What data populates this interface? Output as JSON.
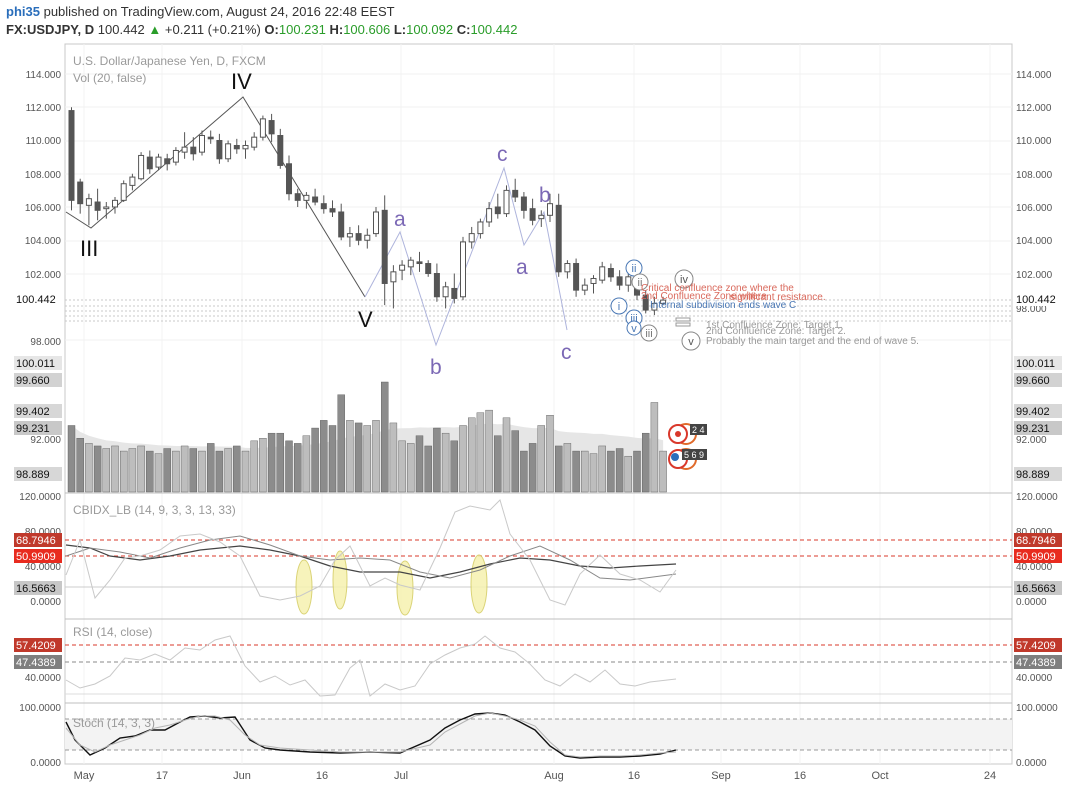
{
  "header": {
    "user": "phi35",
    "published_text": "published on TradingView.com, August 24, 2016 22:48 EEST",
    "symbol": "FX:USDJPY, D",
    "last": "100.442",
    "change": "+0.211 (+0.21%)",
    "o_label": "O:",
    "o_value": "100.231",
    "h_label": "H:",
    "h_value": "100.606",
    "l_label": "L:",
    "l_value": "100.092",
    "c_label": "C:",
    "c_value": "100.442"
  },
  "legend": {
    "main": "U.S. Dollar/Japanese Yen, D, FXCM",
    "vol": "Vol (20, false)",
    "cbidx": "CBIDX_LB (14, 9, 3, 3, 13, 33)",
    "rsi": "RSI (14, close)",
    "stoch": "Stoch (14, 3, 3)"
  },
  "chart_data": {
    "type": "candlestick",
    "title": "U.S. Dollar/Japanese Yen, D, FXCM",
    "y_ticks": [
      "114.000",
      "112.000",
      "110.000",
      "108.000",
      "106.000",
      "104.000",
      "102.000",
      "98.000"
    ],
    "x_ticks": [
      "May",
      "17",
      "Jun",
      "16",
      "Jul",
      "Aug",
      "16",
      "Sep",
      "16",
      "Oct",
      "24"
    ],
    "ylim": [
      97,
      115
    ],
    "last_price_label": "100.442",
    "candles": [
      [
        111.8,
        112.0,
        105.8,
        106.4
      ],
      [
        107.5,
        107.7,
        105.6,
        106.2
      ],
      [
        106.1,
        106.8,
        104.9,
        106.5
      ],
      [
        106.3,
        107.1,
        105.2,
        105.8
      ],
      [
        105.9,
        106.3,
        105.3,
        106.0
      ],
      [
        106.0,
        106.6,
        105.6,
        106.4
      ],
      [
        106.4,
        107.6,
        106.3,
        107.4
      ],
      [
        107.3,
        108.0,
        107.0,
        107.8
      ],
      [
        107.7,
        109.3,
        107.6,
        109.1
      ],
      [
        109.0,
        109.4,
        108.0,
        108.3
      ],
      [
        108.4,
        109.2,
        108.2,
        109.0
      ],
      [
        108.9,
        109.2,
        108.2,
        108.6
      ],
      [
        108.7,
        109.6,
        108.5,
        109.4
      ],
      [
        109.3,
        110.5,
        108.9,
        109.6
      ],
      [
        109.6,
        110.2,
        108.8,
        109.2
      ],
      [
        109.3,
        110.6,
        109.1,
        110.3
      ],
      [
        110.2,
        110.6,
        109.8,
        110.1
      ],
      [
        110.0,
        110.4,
        108.6,
        108.9
      ],
      [
        108.9,
        110.0,
        108.7,
        109.8
      ],
      [
        109.7,
        110.1,
        109.2,
        109.5
      ],
      [
        109.5,
        110.0,
        108.9,
        109.7
      ],
      [
        109.6,
        110.5,
        109.4,
        110.2
      ],
      [
        110.2,
        111.5,
        110.0,
        111.3
      ],
      [
        111.2,
        111.6,
        109.9,
        110.4
      ],
      [
        110.3,
        110.7,
        108.3,
        108.5
      ],
      [
        108.6,
        109.1,
        106.4,
        106.8
      ],
      [
        106.8,
        107.1,
        106.0,
        106.4
      ],
      [
        106.4,
        106.9,
        105.9,
        106.7
      ],
      [
        106.6,
        107.1,
        106.1,
        106.3
      ],
      [
        106.2,
        106.7,
        105.6,
        105.9
      ],
      [
        105.9,
        106.4,
        105.4,
        105.7
      ],
      [
        105.7,
        106.2,
        104.0,
        104.2
      ],
      [
        104.2,
        104.8,
        103.6,
        104.4
      ],
      [
        104.4,
        104.9,
        103.7,
        104.0
      ],
      [
        104.0,
        104.7,
        103.5,
        104.3
      ],
      [
        104.4,
        106.0,
        104.2,
        105.7
      ],
      [
        105.8,
        106.7,
        100.1,
        101.4
      ],
      [
        101.5,
        102.5,
        99.9,
        102.1
      ],
      [
        102.2,
        102.8,
        101.6,
        102.5
      ],
      [
        102.4,
        103.0,
        101.9,
        102.8
      ],
      [
        102.7,
        103.3,
        102.1,
        102.6
      ],
      [
        102.6,
        102.8,
        101.8,
        102.0
      ],
      [
        102.0,
        102.6,
        100.3,
        100.6
      ],
      [
        100.6,
        101.5,
        99.9,
        101.2
      ],
      [
        101.1,
        102.0,
        100.2,
        100.5
      ],
      [
        100.6,
        104.2,
        100.4,
        103.9
      ],
      [
        103.9,
        104.8,
        103.5,
        104.4
      ],
      [
        104.4,
        105.3,
        104.1,
        105.1
      ],
      [
        105.1,
        106.3,
        104.8,
        105.9
      ],
      [
        106.0,
        106.8,
        105.3,
        105.6
      ],
      [
        105.6,
        107.3,
        105.4,
        107.0
      ],
      [
        107.0,
        107.7,
        106.3,
        106.6
      ],
      [
        106.6,
        106.9,
        105.3,
        105.8
      ],
      [
        105.9,
        106.5,
        104.9,
        105.2
      ],
      [
        105.3,
        105.8,
        104.8,
        105.5
      ],
      [
        105.5,
        106.8,
        105.1,
        106.2
      ],
      [
        106.1,
        106.8,
        101.8,
        102.1
      ],
      [
        102.1,
        102.8,
        101.7,
        102.6
      ],
      [
        102.6,
        102.9,
        100.6,
        101.0
      ],
      [
        101.0,
        101.7,
        100.7,
        101.3
      ],
      [
        101.4,
        101.9,
        100.8,
        101.7
      ],
      [
        101.6,
        102.7,
        101.4,
        102.4
      ],
      [
        102.3,
        102.6,
        101.5,
        101.8
      ],
      [
        101.8,
        102.2,
        101.0,
        101.3
      ],
      [
        101.3,
        102.1,
        100.9,
        101.8
      ],
      [
        101.7,
        102.1,
        100.4,
        100.7
      ],
      [
        100.7,
        101.0,
        99.6,
        99.8
      ],
      [
        99.8,
        100.6,
        99.5,
        100.2
      ],
      [
        100.2,
        100.6,
        100.1,
        100.4
      ]
    ],
    "volume": {
      "y_ticks": [
        "92.000"
      ],
      "ma_label": "20",
      "values": [
        2.6,
        2.1,
        1.9,
        1.8,
        1.7,
        1.8,
        1.6,
        1.7,
        1.8,
        1.6,
        1.5,
        1.7,
        1.6,
        1.8,
        1.7,
        1.6,
        1.9,
        1.6,
        1.7,
        1.8,
        1.6,
        2.0,
        2.1,
        2.3,
        2.3,
        2.0,
        1.9,
        2.2,
        2.5,
        2.8,
        2.6,
        3.8,
        2.8,
        2.7,
        2.6,
        2.8,
        4.3,
        2.7,
        2.0,
        1.9,
        2.2,
        1.8,
        2.5,
        2.3,
        2.0,
        2.6,
        2.9,
        3.1,
        3.2,
        2.2,
        2.9,
        2.4,
        1.6,
        1.9,
        2.6,
        3.0,
        1.8,
        1.9,
        1.6,
        1.6,
        1.5,
        1.8,
        1.6,
        1.7,
        1.4,
        1.6,
        2.3,
        3.5,
        1.6
      ]
    },
    "cbidx": {
      "y_ticks": [
        "120.0000",
        "80.0000",
        "40.0000",
        "0.0000"
      ],
      "ylim": [
        0,
        120
      ]
    },
    "rsi": {
      "y_ticks": [
        "40.0000"
      ],
      "ylim": [
        25,
        80
      ]
    },
    "stoch": {
      "y_ticks": [
        "100.0000",
        "0.0000"
      ],
      "ylim": [
        0,
        100
      ]
    }
  },
  "right_labels": {
    "price_last": "100.442",
    "l1": "100.011",
    "l2": "99.660",
    "l3": "99.402",
    "l4": "99.231",
    "l5": "98.889",
    "cb1": "68.7946",
    "cb2": "50.9909",
    "cb3": "16.5663",
    "rsi1": "57.4209",
    "rsi2": "47.4389"
  },
  "left_labels": {
    "price_last": "100.442",
    "l1": "100.011",
    "l2": "99.660",
    "l3": "99.402",
    "l4": "99.231",
    "l5": "98.889",
    "cb1": "68.7946",
    "cb2": "50.9909",
    "cb3": "16.5663",
    "rsi1": "57.4209",
    "rsi2": "47.4389"
  },
  "wave_labels": {
    "III": "III",
    "IV": "IV",
    "V": "V",
    "a": "a",
    "b": "b",
    "c": "c",
    "i": "i",
    "ii": "ii",
    "iii": "iii",
    "iv": "iv",
    "v": "v"
  },
  "annotations": {
    "critical": "Critical confluence zone where the",
    "critical2": "2nd Confluence Zone where",
    "critical3": "significant resistance.",
    "internal": "Internal subdivision ends wave C",
    "target1": "1st Confluence Zone: Target 1.",
    "target2": "2nd Confluence Zone: Target 2.",
    "probably": "Probably the main target and the end of wave 5.",
    "badge1": "2 4",
    "badge2": "5 6 9"
  },
  "colors": {
    "up": "#ffffff",
    "down": "#555555",
    "wave_purple": "#7b68b5",
    "red_label": "#d9382b",
    "gray_label": "#8c8c8c",
    "dark_label": "#555555"
  }
}
